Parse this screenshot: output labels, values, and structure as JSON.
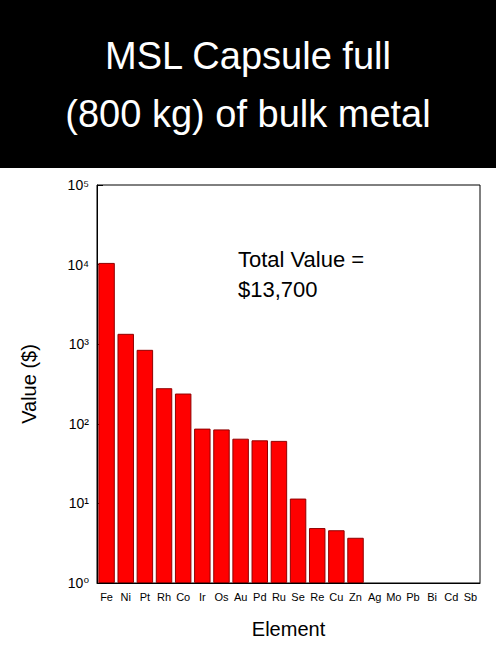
{
  "chart_data": {
    "type": "bar",
    "title": "MSL Capsule full\n(800 kg) of bulk metal",
    "annotations": [
      "Total Value =\n$13,700"
    ],
    "x_label": "Element",
    "y_label": "Value ($)",
    "categories": [
      "Fe",
      "Ni",
      "Pt",
      "Rh",
      "Co",
      "Ir",
      "Os",
      "Au",
      "Pd",
      "Ru",
      "Se",
      "Re",
      "Cu",
      "Zn",
      "Ag",
      "Mo",
      "Pb",
      "Bi",
      "Cd",
      "Sb"
    ],
    "values": [
      10500,
      1350,
      850,
      280,
      240,
      87,
      85,
      65,
      62,
      61,
      11.5,
      4.9,
      4.6,
      3.7,
      null,
      null,
      null,
      null,
      null,
      null
    ],
    "color": "#ff0000",
    "log": "y",
    "ylim": [
      1,
      100000
    ],
    "yticks": [
      {
        "value": 1,
        "label": "10⁰"
      },
      {
        "value": 10,
        "label": "10¹"
      },
      {
        "value": 100,
        "label": "10²"
      },
      {
        "value": 1000,
        "label": "10³"
      },
      {
        "value": 10000,
        "label": "10⁴"
      },
      {
        "value": 100000,
        "label": "10⁵"
      }
    ],
    "grid": false
  }
}
